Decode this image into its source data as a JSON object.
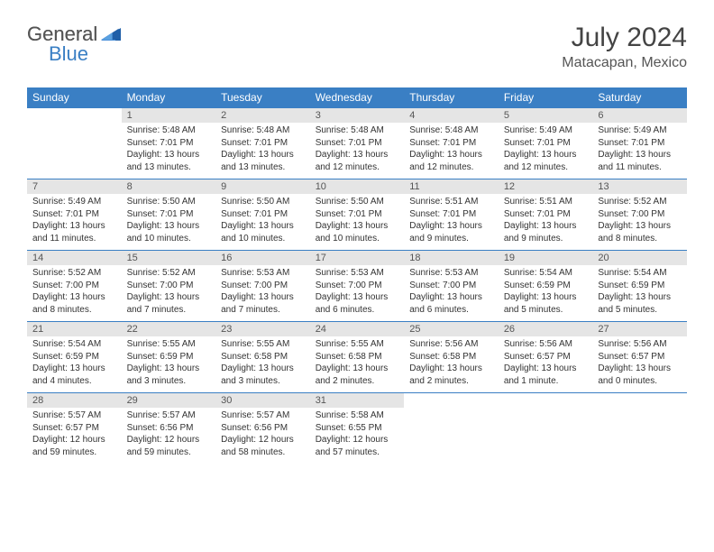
{
  "logo": {
    "part1": "General",
    "part2": "Blue"
  },
  "title": "July 2024",
  "location": "Matacapan, Mexico",
  "weekdays": [
    "Sunday",
    "Monday",
    "Tuesday",
    "Wednesday",
    "Thursday",
    "Friday",
    "Saturday"
  ],
  "colors": {
    "header_bg": "#3a7fc4",
    "daynum_bg": "#e5e5e5",
    "border": "#3a7fc4"
  },
  "weeks": [
    [
      {
        "num": "",
        "lines": []
      },
      {
        "num": "1",
        "lines": [
          "Sunrise: 5:48 AM",
          "Sunset: 7:01 PM",
          "Daylight: 13 hours",
          "and 13 minutes."
        ]
      },
      {
        "num": "2",
        "lines": [
          "Sunrise: 5:48 AM",
          "Sunset: 7:01 PM",
          "Daylight: 13 hours",
          "and 13 minutes."
        ]
      },
      {
        "num": "3",
        "lines": [
          "Sunrise: 5:48 AM",
          "Sunset: 7:01 PM",
          "Daylight: 13 hours",
          "and 12 minutes."
        ]
      },
      {
        "num": "4",
        "lines": [
          "Sunrise: 5:48 AM",
          "Sunset: 7:01 PM",
          "Daylight: 13 hours",
          "and 12 minutes."
        ]
      },
      {
        "num": "5",
        "lines": [
          "Sunrise: 5:49 AM",
          "Sunset: 7:01 PM",
          "Daylight: 13 hours",
          "and 12 minutes."
        ]
      },
      {
        "num": "6",
        "lines": [
          "Sunrise: 5:49 AM",
          "Sunset: 7:01 PM",
          "Daylight: 13 hours",
          "and 11 minutes."
        ]
      }
    ],
    [
      {
        "num": "7",
        "lines": [
          "Sunrise: 5:49 AM",
          "Sunset: 7:01 PM",
          "Daylight: 13 hours",
          "and 11 minutes."
        ]
      },
      {
        "num": "8",
        "lines": [
          "Sunrise: 5:50 AM",
          "Sunset: 7:01 PM",
          "Daylight: 13 hours",
          "and 10 minutes."
        ]
      },
      {
        "num": "9",
        "lines": [
          "Sunrise: 5:50 AM",
          "Sunset: 7:01 PM",
          "Daylight: 13 hours",
          "and 10 minutes."
        ]
      },
      {
        "num": "10",
        "lines": [
          "Sunrise: 5:50 AM",
          "Sunset: 7:01 PM",
          "Daylight: 13 hours",
          "and 10 minutes."
        ]
      },
      {
        "num": "11",
        "lines": [
          "Sunrise: 5:51 AM",
          "Sunset: 7:01 PM",
          "Daylight: 13 hours",
          "and 9 minutes."
        ]
      },
      {
        "num": "12",
        "lines": [
          "Sunrise: 5:51 AM",
          "Sunset: 7:01 PM",
          "Daylight: 13 hours",
          "and 9 minutes."
        ]
      },
      {
        "num": "13",
        "lines": [
          "Sunrise: 5:52 AM",
          "Sunset: 7:00 PM",
          "Daylight: 13 hours",
          "and 8 minutes."
        ]
      }
    ],
    [
      {
        "num": "14",
        "lines": [
          "Sunrise: 5:52 AM",
          "Sunset: 7:00 PM",
          "Daylight: 13 hours",
          "and 8 minutes."
        ]
      },
      {
        "num": "15",
        "lines": [
          "Sunrise: 5:52 AM",
          "Sunset: 7:00 PM",
          "Daylight: 13 hours",
          "and 7 minutes."
        ]
      },
      {
        "num": "16",
        "lines": [
          "Sunrise: 5:53 AM",
          "Sunset: 7:00 PM",
          "Daylight: 13 hours",
          "and 7 minutes."
        ]
      },
      {
        "num": "17",
        "lines": [
          "Sunrise: 5:53 AM",
          "Sunset: 7:00 PM",
          "Daylight: 13 hours",
          "and 6 minutes."
        ]
      },
      {
        "num": "18",
        "lines": [
          "Sunrise: 5:53 AM",
          "Sunset: 7:00 PM",
          "Daylight: 13 hours",
          "and 6 minutes."
        ]
      },
      {
        "num": "19",
        "lines": [
          "Sunrise: 5:54 AM",
          "Sunset: 6:59 PM",
          "Daylight: 13 hours",
          "and 5 minutes."
        ]
      },
      {
        "num": "20",
        "lines": [
          "Sunrise: 5:54 AM",
          "Sunset: 6:59 PM",
          "Daylight: 13 hours",
          "and 5 minutes."
        ]
      }
    ],
    [
      {
        "num": "21",
        "lines": [
          "Sunrise: 5:54 AM",
          "Sunset: 6:59 PM",
          "Daylight: 13 hours",
          "and 4 minutes."
        ]
      },
      {
        "num": "22",
        "lines": [
          "Sunrise: 5:55 AM",
          "Sunset: 6:59 PM",
          "Daylight: 13 hours",
          "and 3 minutes."
        ]
      },
      {
        "num": "23",
        "lines": [
          "Sunrise: 5:55 AM",
          "Sunset: 6:58 PM",
          "Daylight: 13 hours",
          "and 3 minutes."
        ]
      },
      {
        "num": "24",
        "lines": [
          "Sunrise: 5:55 AM",
          "Sunset: 6:58 PM",
          "Daylight: 13 hours",
          "and 2 minutes."
        ]
      },
      {
        "num": "25",
        "lines": [
          "Sunrise: 5:56 AM",
          "Sunset: 6:58 PM",
          "Daylight: 13 hours",
          "and 2 minutes."
        ]
      },
      {
        "num": "26",
        "lines": [
          "Sunrise: 5:56 AM",
          "Sunset: 6:57 PM",
          "Daylight: 13 hours",
          "and 1 minute."
        ]
      },
      {
        "num": "27",
        "lines": [
          "Sunrise: 5:56 AM",
          "Sunset: 6:57 PM",
          "Daylight: 13 hours",
          "and 0 minutes."
        ]
      }
    ],
    [
      {
        "num": "28",
        "lines": [
          "Sunrise: 5:57 AM",
          "Sunset: 6:57 PM",
          "Daylight: 12 hours",
          "and 59 minutes."
        ]
      },
      {
        "num": "29",
        "lines": [
          "Sunrise: 5:57 AM",
          "Sunset: 6:56 PM",
          "Daylight: 12 hours",
          "and 59 minutes."
        ]
      },
      {
        "num": "30",
        "lines": [
          "Sunrise: 5:57 AM",
          "Sunset: 6:56 PM",
          "Daylight: 12 hours",
          "and 58 minutes."
        ]
      },
      {
        "num": "31",
        "lines": [
          "Sunrise: 5:58 AM",
          "Sunset: 6:55 PM",
          "Daylight: 12 hours",
          "and 57 minutes."
        ]
      },
      {
        "num": "",
        "lines": []
      },
      {
        "num": "",
        "lines": []
      },
      {
        "num": "",
        "lines": []
      }
    ]
  ]
}
